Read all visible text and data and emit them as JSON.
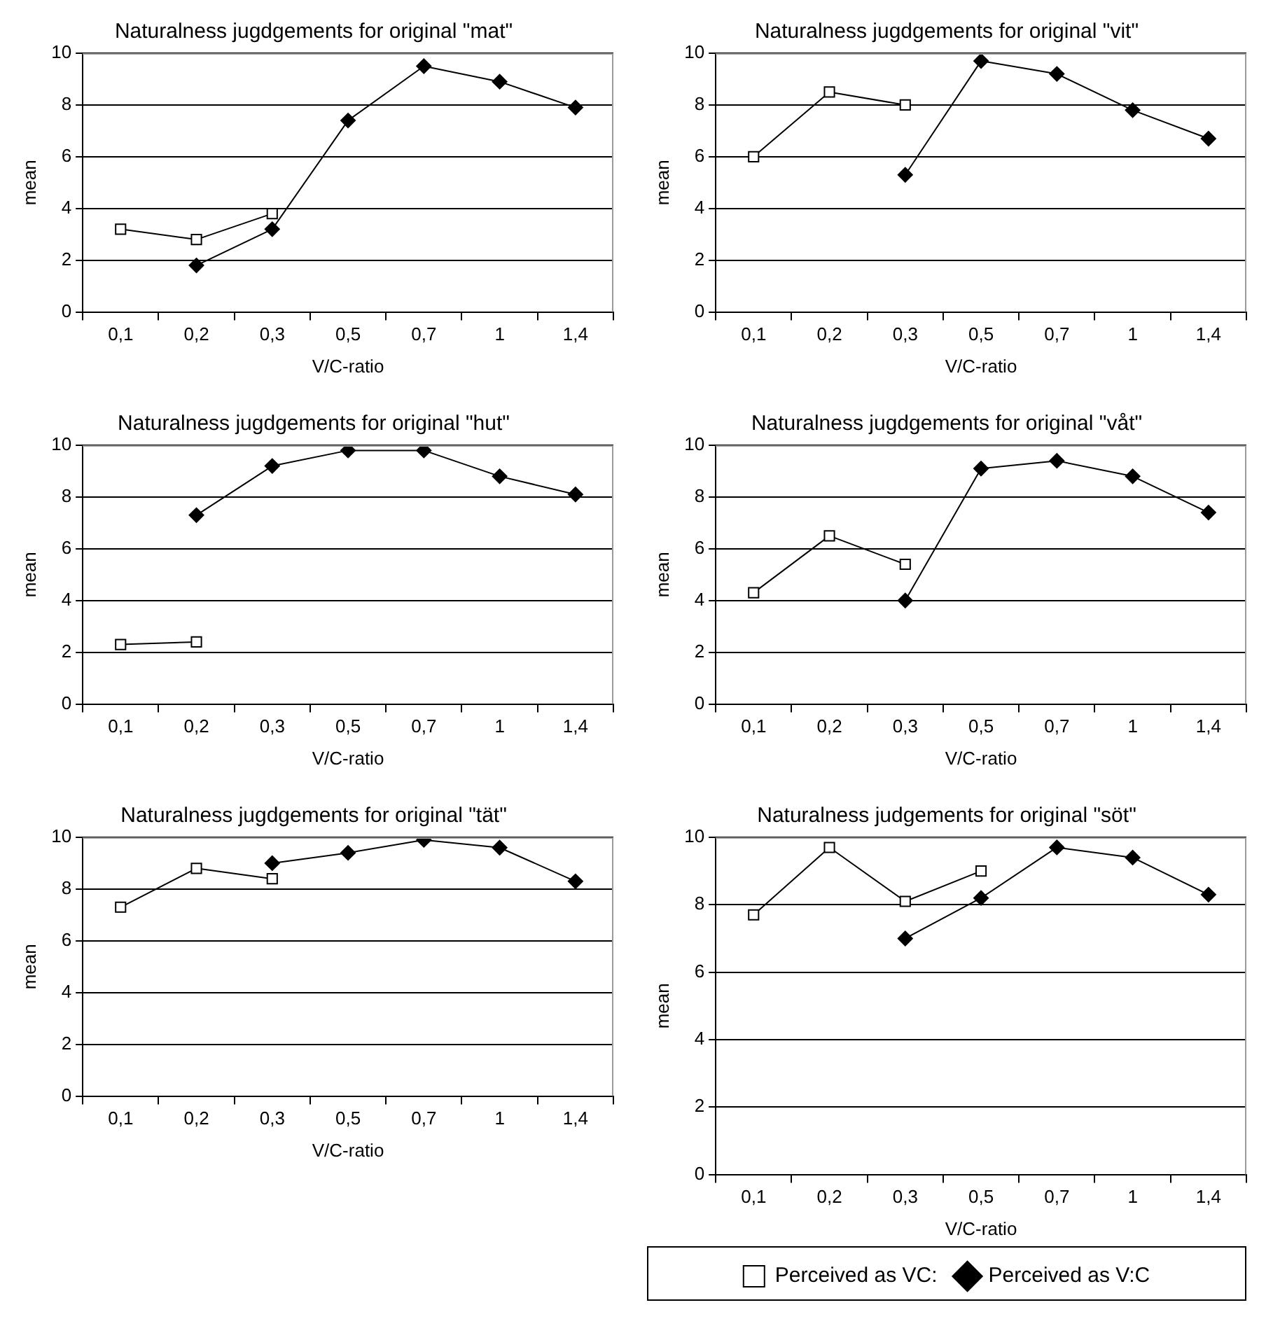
{
  "chart_data": [
    {
      "type": "line",
      "title": "Naturalness jugdgements for original \"mat\"",
      "xlabel": "V/C-ratio",
      "ylabel": "mean",
      "categories": [
        "0,1",
        "0,2",
        "0,3",
        "0,5",
        "0,7",
        "1",
        "1,4"
      ],
      "series": [
        {
          "color": "#000000",
          "marker": "square",
          "values": [
            3.2,
            2.8,
            3.8,
            null,
            null,
            null,
            null
          ]
        },
        {
          "color": "#000000",
          "marker": "diamond",
          "values": [
            null,
            1.8,
            3.2,
            7.4,
            9.5,
            8.9,
            7.9
          ]
        }
      ],
      "ylim": [
        0,
        10
      ],
      "yticks": [
        0,
        2,
        4,
        6,
        8,
        10
      ],
      "grid": "y",
      "legend": false
    },
    {
      "type": "line",
      "title": "Naturalness jugdgements for original \"vit\"",
      "xlabel": "V/C-ratio",
      "ylabel": "mean",
      "categories": [
        "0,1",
        "0,2",
        "0,3",
        "0,5",
        "0,7",
        "1",
        "1,4"
      ],
      "series": [
        {
          "color": "#000000",
          "marker": "square",
          "values": [
            6.0,
            8.5,
            8.0,
            null,
            null,
            null,
            null
          ]
        },
        {
          "color": "#000000",
          "marker": "diamond",
          "values": [
            null,
            null,
            5.3,
            9.7,
            9.2,
            7.8,
            6.7
          ]
        }
      ],
      "ylim": [
        0,
        10
      ],
      "yticks": [
        0,
        2,
        4,
        6,
        8,
        10
      ],
      "grid": "y",
      "legend": false
    },
    {
      "type": "line",
      "title": "Naturalness jugdgements for original \"hut\"",
      "xlabel": "V/C-ratio",
      "ylabel": "mean",
      "categories": [
        "0,1",
        "0,2",
        "0,3",
        "0,5",
        "0,7",
        "1",
        "1,4"
      ],
      "series": [
        {
          "color": "#000000",
          "marker": "square",
          "values": [
            2.3,
            2.4,
            null,
            null,
            null,
            null,
            null
          ]
        },
        {
          "color": "#000000",
          "marker": "diamond",
          "values": [
            null,
            7.3,
            9.2,
            9.8,
            9.8,
            8.8,
            8.1
          ]
        }
      ],
      "ylim": [
        0,
        10
      ],
      "yticks": [
        0,
        2,
        4,
        6,
        8,
        10
      ],
      "grid": "y",
      "legend": false
    },
    {
      "type": "line",
      "title": "Naturalness jugdgements for original \"våt\"",
      "xlabel": "V/C-ratio",
      "ylabel": "mean",
      "categories": [
        "0,1",
        "0,2",
        "0,3",
        "0,5",
        "0,7",
        "1",
        "1,4"
      ],
      "series": [
        {
          "color": "#000000",
          "marker": "square",
          "values": [
            4.3,
            6.5,
            5.4,
            null,
            null,
            null,
            null
          ]
        },
        {
          "color": "#000000",
          "marker": "diamond",
          "values": [
            null,
            null,
            4.0,
            9.1,
            9.4,
            8.8,
            7.4
          ]
        }
      ],
      "ylim": [
        0,
        10
      ],
      "yticks": [
        0,
        2,
        4,
        6,
        8,
        10
      ],
      "grid": "y",
      "legend": false
    },
    {
      "type": "line",
      "title": "Naturalness jugdgements for original \"tät\"",
      "xlabel": "V/C-ratio",
      "ylabel": "mean",
      "categories": [
        "0,1",
        "0,2",
        "0,3",
        "0,5",
        "0,7",
        "1",
        "1,4"
      ],
      "series": [
        {
          "color": "#000000",
          "marker": "square",
          "values": [
            7.3,
            8.8,
            8.4,
            null,
            null,
            null,
            null
          ]
        },
        {
          "color": "#000000",
          "marker": "diamond",
          "values": [
            null,
            null,
            9.0,
            9.4,
            9.9,
            9.6,
            8.3
          ]
        }
      ],
      "ylim": [
        0,
        10
      ],
      "yticks": [
        0,
        2,
        4,
        6,
        8,
        10
      ],
      "grid": "y",
      "legend": false
    },
    {
      "type": "line",
      "title": "Naturalness judgements for original \"söt\"",
      "xlabel": "V/C-ratio",
      "ylabel": "mean",
      "categories": [
        "0,1",
        "0,2",
        "0,3",
        "0,5",
        "0,7",
        "1",
        "1,4"
      ],
      "series": [
        {
          "name": "Perceived as VC:",
          "color": "#000000",
          "marker": "square",
          "values": [
            7.7,
            9.7,
            8.1,
            9.0,
            null,
            null,
            null
          ]
        },
        {
          "name": "Perceived as V:C",
          "color": "#000000",
          "marker": "diamond",
          "values": [
            null,
            null,
            7.0,
            8.2,
            9.7,
            9.4,
            8.3
          ]
        }
      ],
      "ylim": [
        0,
        10
      ],
      "yticks": [
        0,
        2,
        4,
        6,
        8,
        10
      ],
      "grid": "y",
      "legend": "bottom"
    }
  ]
}
